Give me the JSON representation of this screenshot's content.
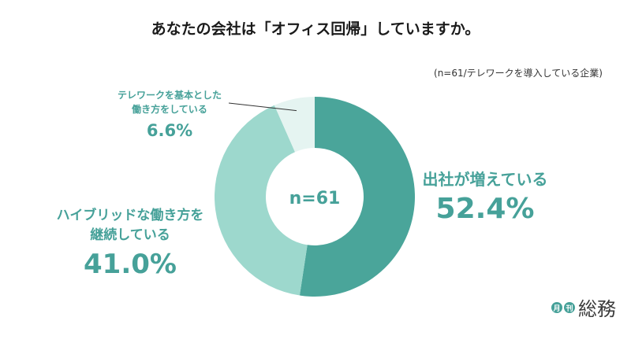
{
  "title": "あなたの会社は「オフィス回帰」していますか。",
  "note": "(n=61/テレワークを導入している企業)",
  "chart_data": {
    "type": "pie",
    "center_label": "n=61",
    "slices": [
      {
        "label": "出社が増えている",
        "value": 52.4,
        "display": "52.4%",
        "color": "#4aa59a"
      },
      {
        "label": "ハイブリッドな働き方を継続している",
        "value": 41.0,
        "display": "41.0%",
        "color": "#9dd8cd"
      },
      {
        "label": "テレワークを基本とした働き方をしている",
        "value": 6.6,
        "display": "6.6%",
        "color": "#e5f4f1"
      }
    ]
  },
  "labels": {
    "office": {
      "line1": "出社が増えている",
      "value": "52.4%"
    },
    "hybrid": {
      "line1": "ハイブリッドな働き方を",
      "line2": "継続している",
      "value": "41.0%"
    },
    "tele": {
      "line1": "テレワークを基本とした",
      "line2": "働き方をしている",
      "value": "6.6%"
    }
  },
  "logo": {
    "badge1": "月",
    "badge2": "刊",
    "name": "総務",
    "color": "#46a199"
  }
}
